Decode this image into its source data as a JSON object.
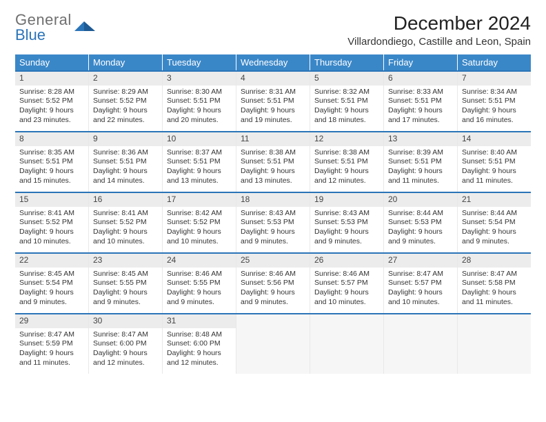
{
  "brand": {
    "line1": "General",
    "line2": "Blue"
  },
  "title": "December 2024",
  "location": "Villardondiego, Castille and Leon, Spain",
  "styling": {
    "header_bg": "#3a87c8",
    "header_text": "#ffffff",
    "week_border": "#2a74b8",
    "daynum_bg": "#ececec",
    "empty_bg": "#f6f6f6",
    "body_bg": "#ffffff",
    "text_color": "#333333",
    "title_fontsize": 28,
    "location_fontsize": 15,
    "weekday_fontsize": 13,
    "daynum_fontsize": 12,
    "cell_fontsize": 10.5,
    "columns": 7,
    "rows": 5
  },
  "weekdays": [
    "Sunday",
    "Monday",
    "Tuesday",
    "Wednesday",
    "Thursday",
    "Friday",
    "Saturday"
  ],
  "days": [
    {
      "n": "1",
      "sr": "8:28 AM",
      "ss": "5:52 PM",
      "dl": "9 hours and 23 minutes."
    },
    {
      "n": "2",
      "sr": "8:29 AM",
      "ss": "5:52 PM",
      "dl": "9 hours and 22 minutes."
    },
    {
      "n": "3",
      "sr": "8:30 AM",
      "ss": "5:51 PM",
      "dl": "9 hours and 20 minutes."
    },
    {
      "n": "4",
      "sr": "8:31 AM",
      "ss": "5:51 PM",
      "dl": "9 hours and 19 minutes."
    },
    {
      "n": "5",
      "sr": "8:32 AM",
      "ss": "5:51 PM",
      "dl": "9 hours and 18 minutes."
    },
    {
      "n": "6",
      "sr": "8:33 AM",
      "ss": "5:51 PM",
      "dl": "9 hours and 17 minutes."
    },
    {
      "n": "7",
      "sr": "8:34 AM",
      "ss": "5:51 PM",
      "dl": "9 hours and 16 minutes."
    },
    {
      "n": "8",
      "sr": "8:35 AM",
      "ss": "5:51 PM",
      "dl": "9 hours and 15 minutes."
    },
    {
      "n": "9",
      "sr": "8:36 AM",
      "ss": "5:51 PM",
      "dl": "9 hours and 14 minutes."
    },
    {
      "n": "10",
      "sr": "8:37 AM",
      "ss": "5:51 PM",
      "dl": "9 hours and 13 minutes."
    },
    {
      "n": "11",
      "sr": "8:38 AM",
      "ss": "5:51 PM",
      "dl": "9 hours and 13 minutes."
    },
    {
      "n": "12",
      "sr": "8:38 AM",
      "ss": "5:51 PM",
      "dl": "9 hours and 12 minutes."
    },
    {
      "n": "13",
      "sr": "8:39 AM",
      "ss": "5:51 PM",
      "dl": "9 hours and 11 minutes."
    },
    {
      "n": "14",
      "sr": "8:40 AM",
      "ss": "5:51 PM",
      "dl": "9 hours and 11 minutes."
    },
    {
      "n": "15",
      "sr": "8:41 AM",
      "ss": "5:52 PM",
      "dl": "9 hours and 10 minutes."
    },
    {
      "n": "16",
      "sr": "8:41 AM",
      "ss": "5:52 PM",
      "dl": "9 hours and 10 minutes."
    },
    {
      "n": "17",
      "sr": "8:42 AM",
      "ss": "5:52 PM",
      "dl": "9 hours and 10 minutes."
    },
    {
      "n": "18",
      "sr": "8:43 AM",
      "ss": "5:53 PM",
      "dl": "9 hours and 9 minutes."
    },
    {
      "n": "19",
      "sr": "8:43 AM",
      "ss": "5:53 PM",
      "dl": "9 hours and 9 minutes."
    },
    {
      "n": "20",
      "sr": "8:44 AM",
      "ss": "5:53 PM",
      "dl": "9 hours and 9 minutes."
    },
    {
      "n": "21",
      "sr": "8:44 AM",
      "ss": "5:54 PM",
      "dl": "9 hours and 9 minutes."
    },
    {
      "n": "22",
      "sr": "8:45 AM",
      "ss": "5:54 PM",
      "dl": "9 hours and 9 minutes."
    },
    {
      "n": "23",
      "sr": "8:45 AM",
      "ss": "5:55 PM",
      "dl": "9 hours and 9 minutes."
    },
    {
      "n": "24",
      "sr": "8:46 AM",
      "ss": "5:55 PM",
      "dl": "9 hours and 9 minutes."
    },
    {
      "n": "25",
      "sr": "8:46 AM",
      "ss": "5:56 PM",
      "dl": "9 hours and 9 minutes."
    },
    {
      "n": "26",
      "sr": "8:46 AM",
      "ss": "5:57 PM",
      "dl": "9 hours and 10 minutes."
    },
    {
      "n": "27",
      "sr": "8:47 AM",
      "ss": "5:57 PM",
      "dl": "9 hours and 10 minutes."
    },
    {
      "n": "28",
      "sr": "8:47 AM",
      "ss": "5:58 PM",
      "dl": "9 hours and 11 minutes."
    },
    {
      "n": "29",
      "sr": "8:47 AM",
      "ss": "5:59 PM",
      "dl": "9 hours and 11 minutes."
    },
    {
      "n": "30",
      "sr": "8:47 AM",
      "ss": "6:00 PM",
      "dl": "9 hours and 12 minutes."
    },
    {
      "n": "31",
      "sr": "8:48 AM",
      "ss": "6:00 PM",
      "dl": "9 hours and 12 minutes."
    }
  ],
  "labels": {
    "sunrise": "Sunrise:",
    "sunset": "Sunset:",
    "daylight": "Daylight:"
  }
}
